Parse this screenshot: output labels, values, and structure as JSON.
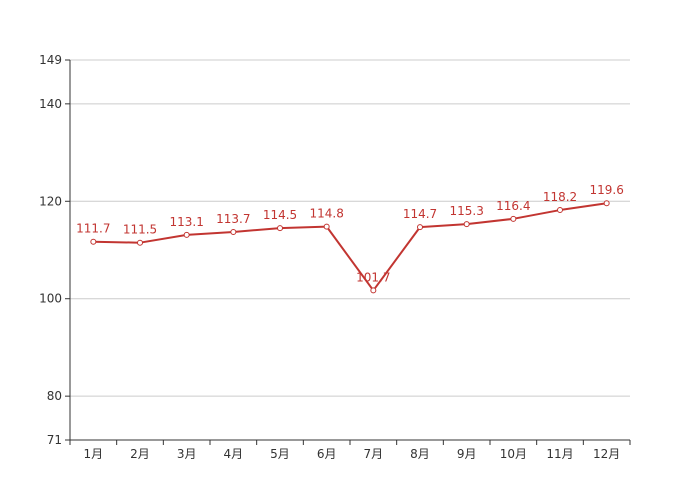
{
  "chart_data": {
    "type": "line",
    "title": "",
    "xlabel": "",
    "ylabel": "",
    "categories": [
      "1月",
      "2月",
      "3月",
      "4月",
      "5月",
      "6月",
      "7月",
      "8月",
      "9月",
      "10月",
      "11月",
      "12月"
    ],
    "series": [
      {
        "values": [
          111.7,
          111.5,
          113.1,
          113.7,
          114.5,
          114.8,
          101.7,
          114.7,
          115.3,
          116.4,
          118.2,
          119.6
        ],
        "color": "#c23531"
      }
    ],
    "y_ticks": [
      71,
      80,
      100,
      120,
      140,
      149
    ],
    "ylim": [
      71,
      149
    ],
    "grid": true,
    "legend": "none",
    "show_data_labels": true
  }
}
